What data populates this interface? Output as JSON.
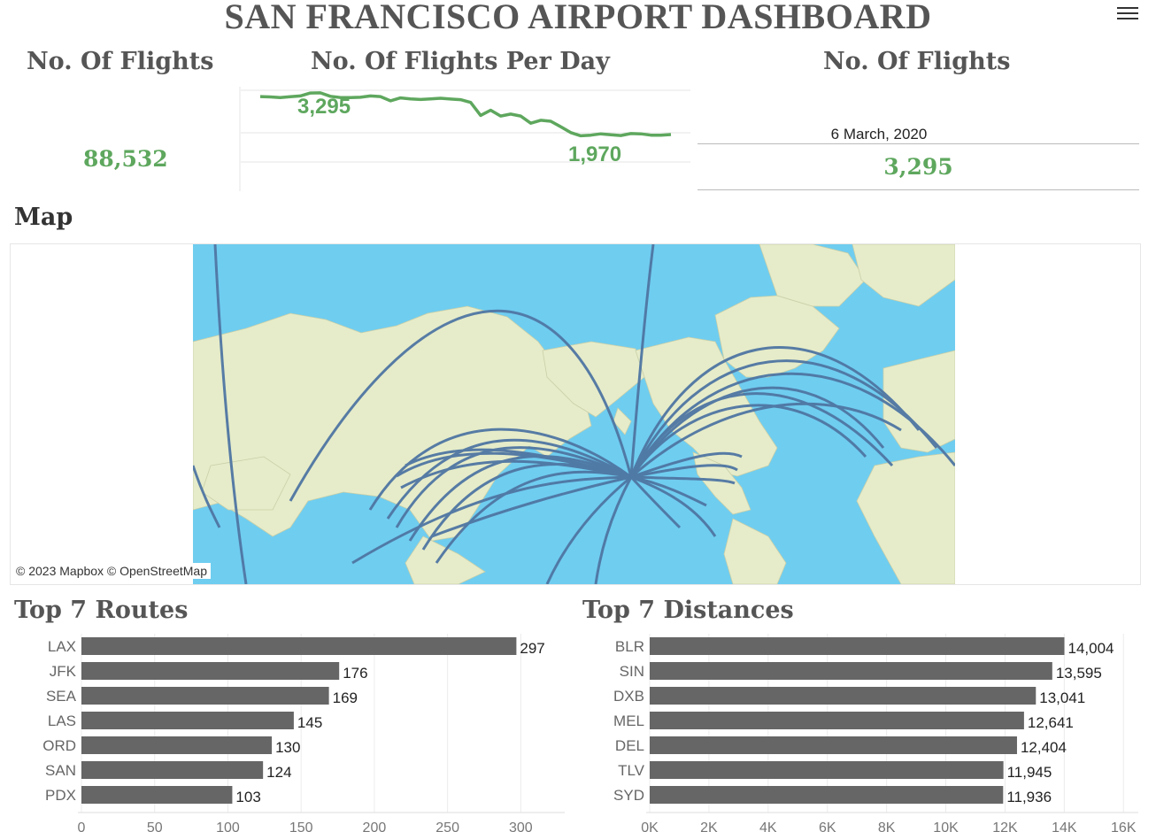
{
  "title": "SAN FRANCISCO AIRPORT DASHBOARD",
  "menu_icon": "hamburger-menu-icon",
  "kpi_total": {
    "heading": "No. Of Flights",
    "value": "88,532"
  },
  "kpi_per_day": {
    "heading": "No. Of Flights Per Day",
    "max_label": "3,295",
    "min_label": "1,970"
  },
  "kpi_day": {
    "heading": "No. Of Flights",
    "date": "6 March, 2020",
    "value": "3,295"
  },
  "map": {
    "heading": "Map",
    "credit": "© 2023 Mapbox © OpenStreetMap"
  },
  "routes": {
    "heading": "Top 7 Routes"
  },
  "distances": {
    "heading": "Top 7 Distances"
  },
  "colors": {
    "accent_green": "#5ea75e",
    "bar": "#666666",
    "route_line": "#4f76a3",
    "ocean": "#6fcdf0",
    "land": "#e6ecc9"
  },
  "chart_data": [
    {
      "type": "line",
      "title": "No. Of Flights Per Day",
      "values": [
        3180,
        3170,
        3150,
        3175,
        3200,
        3290,
        3295,
        3190,
        3150,
        3150,
        3160,
        3200,
        3180,
        3050,
        3140,
        3110,
        3090,
        3110,
        3130,
        3105,
        3085,
        3000,
        2600,
        2760,
        2580,
        2640,
        2580,
        2360,
        2450,
        2420,
        2250,
        2070,
        1970,
        1990,
        2030,
        2000,
        1980,
        2040,
        2030,
        1990,
        1990,
        2010
      ],
      "annotations": [
        {
          "label": "3,295"
        },
        {
          "label": "1,970"
        }
      ]
    },
    {
      "type": "bar",
      "title": "Top 7 Routes",
      "orientation": "horizontal",
      "categories": [
        "LAX",
        "JFK",
        "SEA",
        "LAS",
        "ORD",
        "SAN",
        "PDX"
      ],
      "values": [
        297,
        176,
        169,
        145,
        130,
        124,
        103
      ],
      "value_labels": [
        "297",
        "176",
        "169",
        "145",
        "130",
        "124",
        "103"
      ],
      "xlim": [
        0,
        330
      ],
      "ticks": [
        "0",
        "50",
        "100",
        "150",
        "200",
        "250",
        "300"
      ],
      "tick_values": [
        0,
        50,
        100,
        150,
        200,
        250,
        300
      ],
      "grid": true
    },
    {
      "type": "bar",
      "title": "Top 7 Distances",
      "orientation": "horizontal",
      "categories": [
        "BLR",
        "SIN",
        "DXB",
        "MEL",
        "DEL",
        "TLV",
        "SYD"
      ],
      "values": [
        14004,
        13595,
        13041,
        12641,
        12404,
        11945,
        11936
      ],
      "value_labels": [
        "14,004",
        "13,595",
        "13,041",
        "12,641",
        "12,404",
        "11,945",
        "11,936"
      ],
      "xlim": [
        0,
        16500
      ],
      "ticks": [
        "0K",
        "2K",
        "4K",
        "6K",
        "8K",
        "10K",
        "12K",
        "14K",
        "16K"
      ],
      "tick_values": [
        0,
        2000,
        4000,
        6000,
        8000,
        10000,
        12000,
        14000,
        16000
      ],
      "grid": true
    }
  ]
}
